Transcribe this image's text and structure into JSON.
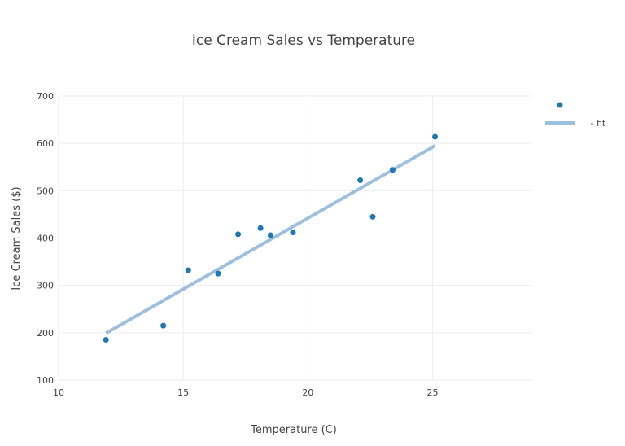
{
  "chart_data": {
    "type": "scatter",
    "title": "Ice Cream Sales vs Temperature",
    "xlabel": "Temperature (C)",
    "ylabel": "Ice Cream Sales ($)",
    "xlim": [
      10,
      29
    ],
    "ylim": [
      100,
      700
    ],
    "xticks": [
      10,
      15,
      20,
      25
    ],
    "yticks": [
      100,
      200,
      300,
      400,
      500,
      600,
      700
    ],
    "grid": true,
    "legend_position": "top-right",
    "series": [
      {
        "name": "",
        "mode": "markers",
        "color": "#1f77b4",
        "points": [
          {
            "x": 11.9,
            "y": 185
          },
          {
            "x": 14.2,
            "y": 215
          },
          {
            "x": 15.2,
            "y": 332
          },
          {
            "x": 16.4,
            "y": 325
          },
          {
            "x": 17.2,
            "y": 408
          },
          {
            "x": 18.1,
            "y": 421
          },
          {
            "x": 18.5,
            "y": 406
          },
          {
            "x": 19.4,
            "y": 412
          },
          {
            "x": 22.1,
            "y": 522
          },
          {
            "x": 22.6,
            "y": 445
          },
          {
            "x": 23.4,
            "y": 544
          },
          {
            "x": 25.1,
            "y": 614
          }
        ]
      },
      {
        "name": " - fit",
        "mode": "line",
        "color": "#9ec0df",
        "points": [
          {
            "x": 11.9,
            "y": 199
          },
          {
            "x": 25.1,
            "y": 595
          }
        ]
      }
    ]
  }
}
